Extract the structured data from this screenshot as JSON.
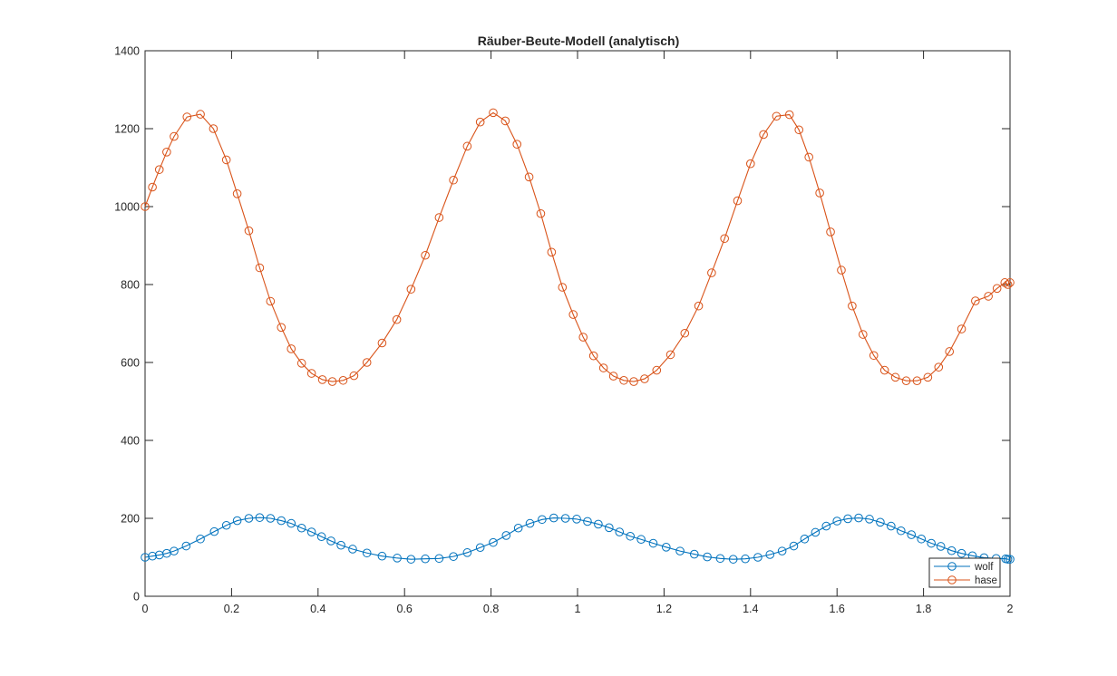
{
  "chart_data": {
    "type": "line",
    "title": "Räuber-Beute-Modell (analytisch)",
    "xlabel": "",
    "ylabel": "",
    "xlim": [
      0,
      2
    ],
    "ylim": [
      0,
      1400
    ],
    "x_ticks": [
      "0",
      "0.2",
      "0.4",
      "0.6",
      "0.8",
      "1",
      "1.2",
      "1.4",
      "1.6",
      "1.8",
      "2"
    ],
    "y_ticks": [
      "0",
      "200",
      "400",
      "600",
      "800",
      "1000",
      "1200",
      "1400"
    ],
    "grid": false,
    "box": true,
    "legend_location": "bottom-right",
    "marker": "circle",
    "series": [
      {
        "name": "wolf",
        "color": "#0072BD",
        "x": [
          0,
          0.017,
          0.033,
          0.05,
          0.067,
          0.095,
          0.128,
          0.16,
          0.188,
          0.213,
          0.24,
          0.265,
          0.29,
          0.315,
          0.338,
          0.362,
          0.385,
          0.408,
          0.43,
          0.453,
          0.48,
          0.513,
          0.548,
          0.583,
          0.615,
          0.648,
          0.68,
          0.713,
          0.745,
          0.775,
          0.805,
          0.835,
          0.863,
          0.89,
          0.918,
          0.945,
          0.972,
          0.998,
          1.023,
          1.048,
          1.073,
          1.097,
          1.122,
          1.147,
          1.175,
          1.205,
          1.237,
          1.27,
          1.3,
          1.33,
          1.36,
          1.388,
          1.417,
          1.445,
          1.473,
          1.5,
          1.525,
          1.55,
          1.575,
          1.6,
          1.625,
          1.65,
          1.675,
          1.7,
          1.725,
          1.748,
          1.772,
          1.795,
          1.818,
          1.84,
          1.865,
          1.888,
          1.913,
          1.94,
          1.968,
          1.99,
          1.995,
          2
        ],
        "y": [
          100,
          103,
          106,
          110,
          116,
          129,
          147,
          166,
          182,
          194,
          200,
          202,
          200,
          194,
          187,
          175,
          165,
          153,
          142,
          131,
          121,
          111,
          103,
          98,
          95,
          96,
          97,
          102,
          112,
          125,
          138,
          156,
          175,
          187,
          197,
          201,
          200,
          198,
          192,
          185,
          176,
          165,
          154,
          146,
          136,
          126,
          116,
          108,
          101,
          97,
          95,
          96,
          100,
          107,
          116,
          129,
          147,
          164,
          180,
          193,
          199,
          201,
          198,
          190,
          180,
          168,
          158,
          147,
          136,
          128,
          117,
          110,
          104,
          99,
          97,
          96,
          95,
          95
        ]
      },
      {
        "name": "hase",
        "color": "#D95319",
        "x": [
          0,
          0.017,
          0.033,
          0.05,
          0.067,
          0.097,
          0.128,
          0.158,
          0.188,
          0.213,
          0.24,
          0.265,
          0.29,
          0.315,
          0.338,
          0.362,
          0.385,
          0.41,
          0.433,
          0.458,
          0.483,
          0.513,
          0.548,
          0.582,
          0.615,
          0.648,
          0.68,
          0.713,
          0.745,
          0.775,
          0.805,
          0.833,
          0.86,
          0.888,
          0.915,
          0.94,
          0.965,
          0.99,
          1.013,
          1.037,
          1.06,
          1.083,
          1.107,
          1.13,
          1.155,
          1.183,
          1.215,
          1.248,
          1.28,
          1.31,
          1.34,
          1.37,
          1.4,
          1.43,
          1.46,
          1.49,
          1.512,
          1.535,
          1.56,
          1.585,
          1.61,
          1.635,
          1.66,
          1.685,
          1.71,
          1.735,
          1.76,
          1.785,
          1.81,
          1.835,
          1.86,
          1.888,
          1.92,
          1.95,
          1.97,
          1.988,
          1.995,
          2
        ],
        "y": [
          1000,
          1050,
          1095,
          1140,
          1180,
          1230,
          1237,
          1200,
          1120,
          1033,
          938,
          843,
          757,
          690,
          635,
          598,
          572,
          556,
          551,
          554,
          566,
          600,
          650,
          710,
          788,
          875,
          972,
          1068,
          1155,
          1217,
          1241,
          1220,
          1160,
          1076,
          982,
          883,
          793,
          723,
          665,
          617,
          586,
          565,
          554,
          551,
          558,
          580,
          620,
          675,
          745,
          830,
          918,
          1015,
          1110,
          1185,
          1232,
          1236,
          1197,
          1127,
          1035,
          935,
          837,
          745,
          672,
          618,
          580,
          562,
          553,
          553,
          562,
          588,
          628,
          686,
          758,
          770,
          790,
          805,
          800,
          805
        ]
      }
    ]
  }
}
